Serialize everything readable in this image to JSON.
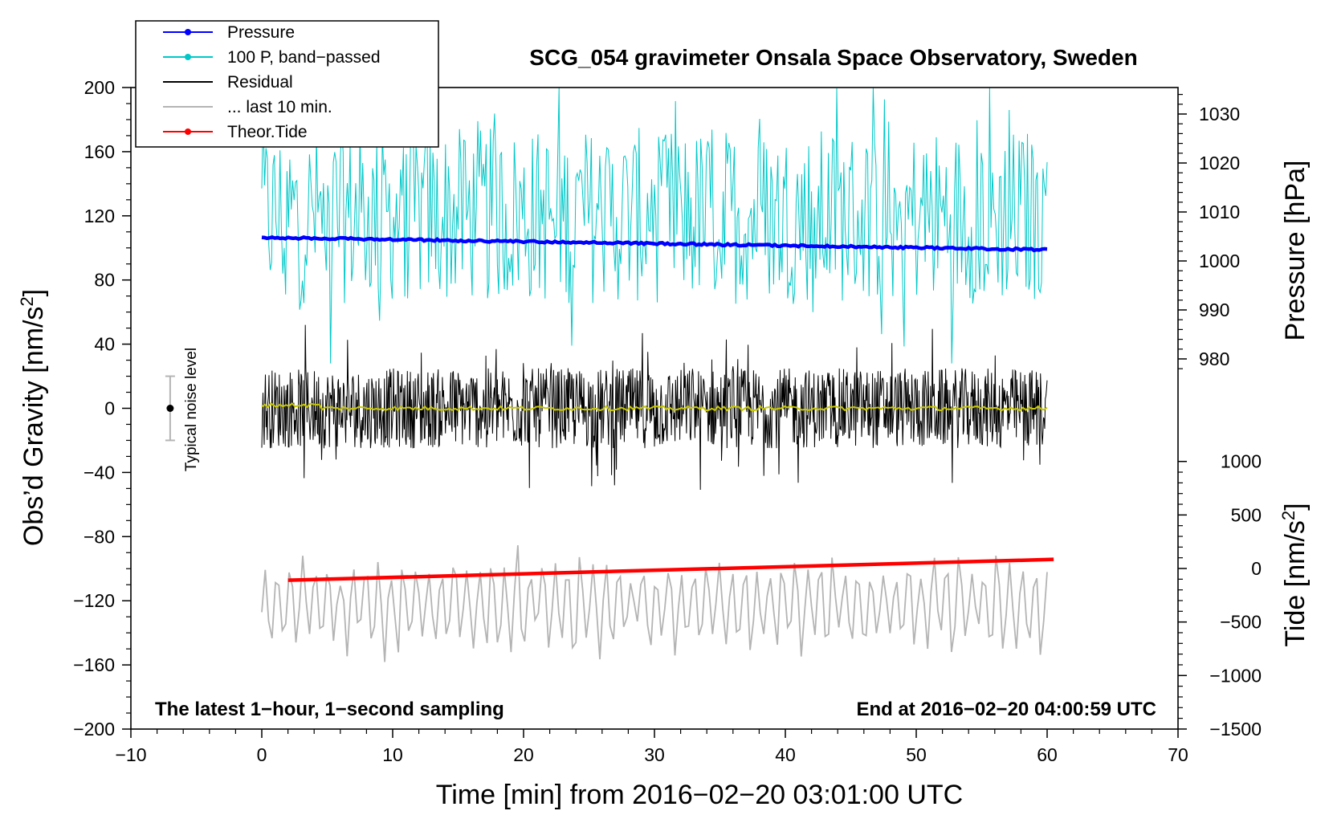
{
  "chart_data": {
    "type": "line",
    "title": "SCG_054 gravimeter Onsala Space Observatory, Sweden",
    "xlabel": "Time [min] from 2016−02−20 03:01:00 UTC",
    "ylabel_left": "Obs’d Gravity [nm/s",
    "ylabel_left_sup": "2",
    "ylabel_left_end": "]",
    "ylabel_right_pressure": "Pressure [hPa]",
    "ylabel_right_tide": "Tide [nm/s",
    "ylabel_right_tide_sup": "2",
    "ylabel_right_tide_end": "]",
    "xlim": [
      -10,
      70
    ],
    "ylim_left": [
      -200,
      200
    ],
    "x_ticks": [
      "−10",
      "0",
      "10",
      "20",
      "30",
      "40",
      "50",
      "60",
      "70"
    ],
    "y_left_ticks": [
      "200",
      "160",
      "120",
      "80",
      "40",
      "0",
      "−40",
      "−80",
      "−120",
      "−160",
      "−200"
    ],
    "pressure_ticks": [
      "1030",
      "1020",
      "1010",
      "1000",
      "990",
      "980"
    ],
    "tide_ticks": [
      "1000",
      "500",
      "0",
      "−500",
      "−1000",
      "−1500"
    ],
    "note_left": "The latest 1−hour, 1−second sampling",
    "note_right": "End at 2016−02−20 04:00:59 UTC",
    "noise_label": "Typical noise level",
    "legend": [
      {
        "label": "Pressure",
        "color": "#0000ff",
        "marker": true
      },
      {
        "label": "100 P, band−passed",
        "color": "#00c8c8",
        "marker": true
      },
      {
        "label": "Residual",
        "color": "#000000",
        "marker": false
      },
      {
        "label": "... last 10 min.",
        "color": "#b4b4b4",
        "marker": false
      },
      {
        "label": "Theor.Tide",
        "color": "#ff0000",
        "marker": true
      }
    ],
    "series": {
      "pressure_hpa": {
        "x": [
          0,
          60
        ],
        "values": [
          1004.8,
          1002.3
        ],
        "color": "#0000ff"
      },
      "band_passed_100P": {
        "x_range": [
          0,
          60
        ],
        "center_nm_s2": 120,
        "amplitude_nm_s2": 55,
        "color": "#00c8c8"
      },
      "residual": {
        "x_range": [
          0,
          60
        ],
        "center_nm_s2": 0,
        "amplitude_nm_s2": 25,
        "color": "#000000"
      },
      "residual_smoothed": {
        "x_range": [
          0,
          60
        ],
        "center_nm_s2": 0,
        "color": "#c8c800"
      },
      "last_10_min": {
        "x_range": [
          0,
          60
        ],
        "center_nm_s2": -122,
        "amplitude_nm_s2": 25,
        "color": "#b4b4b4"
      },
      "theor_tide_nm_s2": {
        "x": [
          2,
          60.5
        ],
        "values": [
          -110,
          85
        ],
        "color": "#ff0000"
      }
    },
    "noise_bar": {
      "x": -7,
      "center": 0,
      "half_range": 20
    }
  }
}
